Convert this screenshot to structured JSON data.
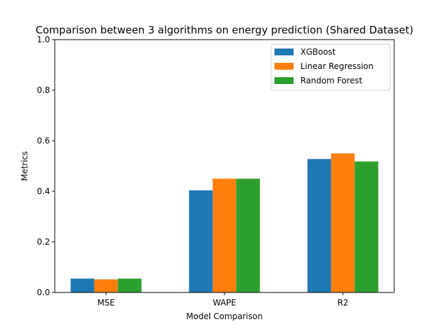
{
  "chart_data": {
    "type": "bar",
    "title": "Comparison between 3 algorithms on energy prediction (Shared Dataset)",
    "xlabel": "Model Comparison",
    "ylabel": "Metrics",
    "categories": [
      "MSE",
      "WAPE",
      "R2"
    ],
    "ylim": [
      0,
      1.0
    ],
    "yticks": [
      0.0,
      0.2,
      0.4,
      0.6,
      0.8,
      1.0
    ],
    "ytick_labels": [
      "0.0",
      "0.2",
      "0.4",
      "0.6",
      "0.8",
      "1.0"
    ],
    "grid": false,
    "legend_placement": "top-right",
    "series": [
      {
        "name": "XGBoost",
        "color": "#1f77b4",
        "values": [
          0.055,
          0.404,
          0.528
        ]
      },
      {
        "name": "Linear Regression",
        "color": "#ff7f0e",
        "values": [
          0.052,
          0.45,
          0.55
        ]
      },
      {
        "name": "Random Forest",
        "color": "#2ca02c",
        "values": [
          0.055,
          0.45,
          0.518
        ]
      }
    ]
  }
}
